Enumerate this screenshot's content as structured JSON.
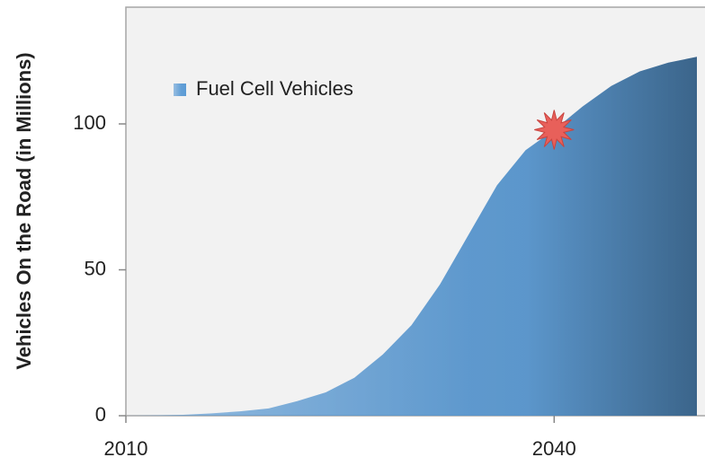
{
  "chart_data": {
    "type": "area",
    "y_label": "Vehicles On the Road (in Millions)",
    "x": [
      2010,
      2012,
      2014,
      2016,
      2018,
      2020,
      2022,
      2024,
      2026,
      2028,
      2030,
      2032,
      2034,
      2036,
      2038,
      2040,
      2042,
      2044,
      2046,
      2048,
      2050
    ],
    "series": [
      {
        "name": "Fuel Cell Vehicles",
        "color": "#5b9bd5",
        "values": [
          0,
          0.1,
          0.3,
          0.8,
          1.5,
          2.5,
          5,
          8,
          13,
          21,
          31,
          45,
          62,
          79,
          91,
          98,
          106,
          113,
          118,
          121,
          123
        ]
      }
    ],
    "marker": {
      "x": 2040,
      "y": 98,
      "color": "#e8605a"
    },
    "xlim": [
      2010,
      2050
    ],
    "xticks": [
      2010,
      2040
    ],
    "ylim": [
      0,
      140
    ],
    "yticks": [
      0,
      50,
      100
    ],
    "legend": "upper left"
  }
}
